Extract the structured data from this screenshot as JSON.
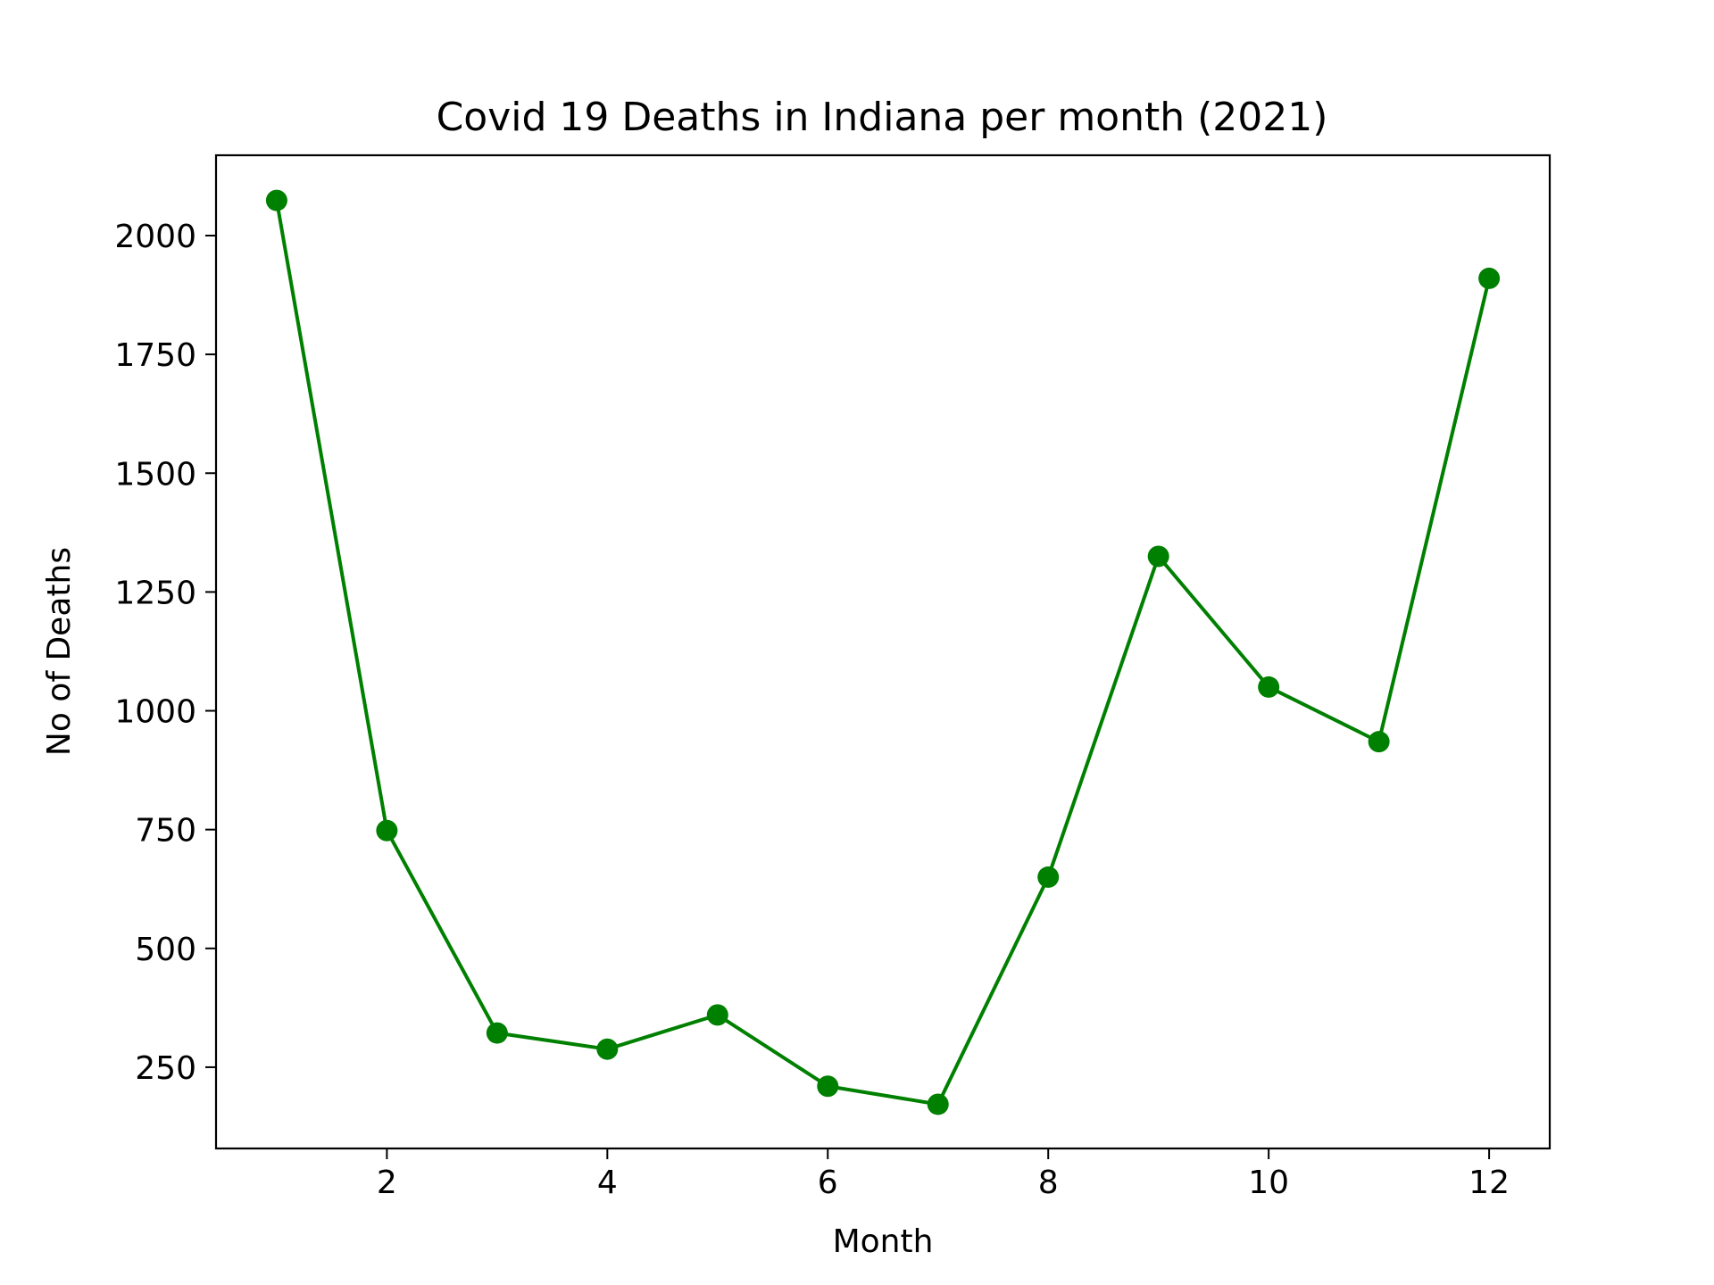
{
  "chart_data": {
    "type": "line",
    "title": "Covid 19 Deaths in Indiana per month (2021)",
    "xlabel": "Month",
    "ylabel": "No of Deaths",
    "x": [
      1,
      2,
      3,
      4,
      5,
      6,
      7,
      8,
      9,
      10,
      11,
      12
    ],
    "series": [
      {
        "values": [
          2074,
          748,
          322,
          288,
          360,
          210,
          172,
          650,
          1325,
          1050,
          935,
          1910
        ],
        "color": "#008000",
        "marker": "circle"
      }
    ],
    "xlim": [
      0.45,
      12.55
    ],
    "ylim": [
      79,
      2169
    ],
    "xticks": [
      2,
      4,
      6,
      8,
      10,
      12
    ],
    "yticks": [
      250,
      500,
      750,
      1000,
      1250,
      1500,
      1750,
      2000
    ],
    "grid": false,
    "legend": "none"
  }
}
